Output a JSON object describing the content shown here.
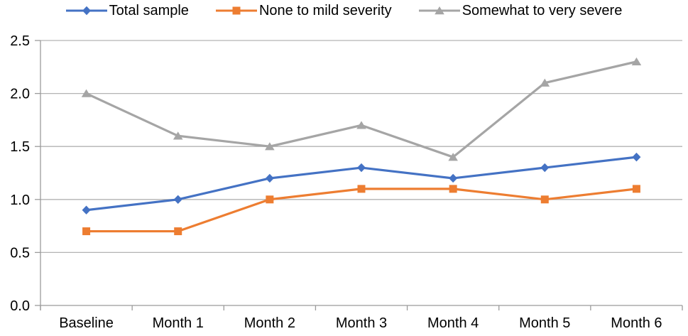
{
  "chart_data": {
    "type": "line",
    "title": "",
    "xlabel": "",
    "ylabel": "",
    "categories": [
      "Baseline",
      "Month 1",
      "Month 2",
      "Month 3",
      "Month 4",
      "Month 5",
      "Month 6"
    ],
    "series": [
      {
        "name": "Total sample",
        "marker": "diamond",
        "color": "#4472C4",
        "values": [
          0.9,
          1.0,
          1.2,
          1.3,
          1.2,
          1.3,
          1.4
        ]
      },
      {
        "name": "None to mild severity",
        "marker": "square",
        "color": "#ED7D31",
        "values": [
          0.7,
          0.7,
          1.0,
          1.1,
          1.1,
          1.0,
          1.1
        ]
      },
      {
        "name": "Somewhat to very severe",
        "marker": "triangle",
        "color": "#A5A5A5",
        "values": [
          2.0,
          1.6,
          1.5,
          1.7,
          1.4,
          2.1,
          2.3
        ]
      }
    ],
    "ylim": [
      0.0,
      2.5
    ],
    "y_ticks": [
      "0.0",
      "0.5",
      "1.0",
      "1.5",
      "2.0",
      "2.5"
    ],
    "grid": true,
    "legend_position": "top",
    "colors": {
      "gridline": "#B3B3B3",
      "axis": "#9B9B9B",
      "text": "#000000",
      "background": "#FFFFFF"
    }
  }
}
